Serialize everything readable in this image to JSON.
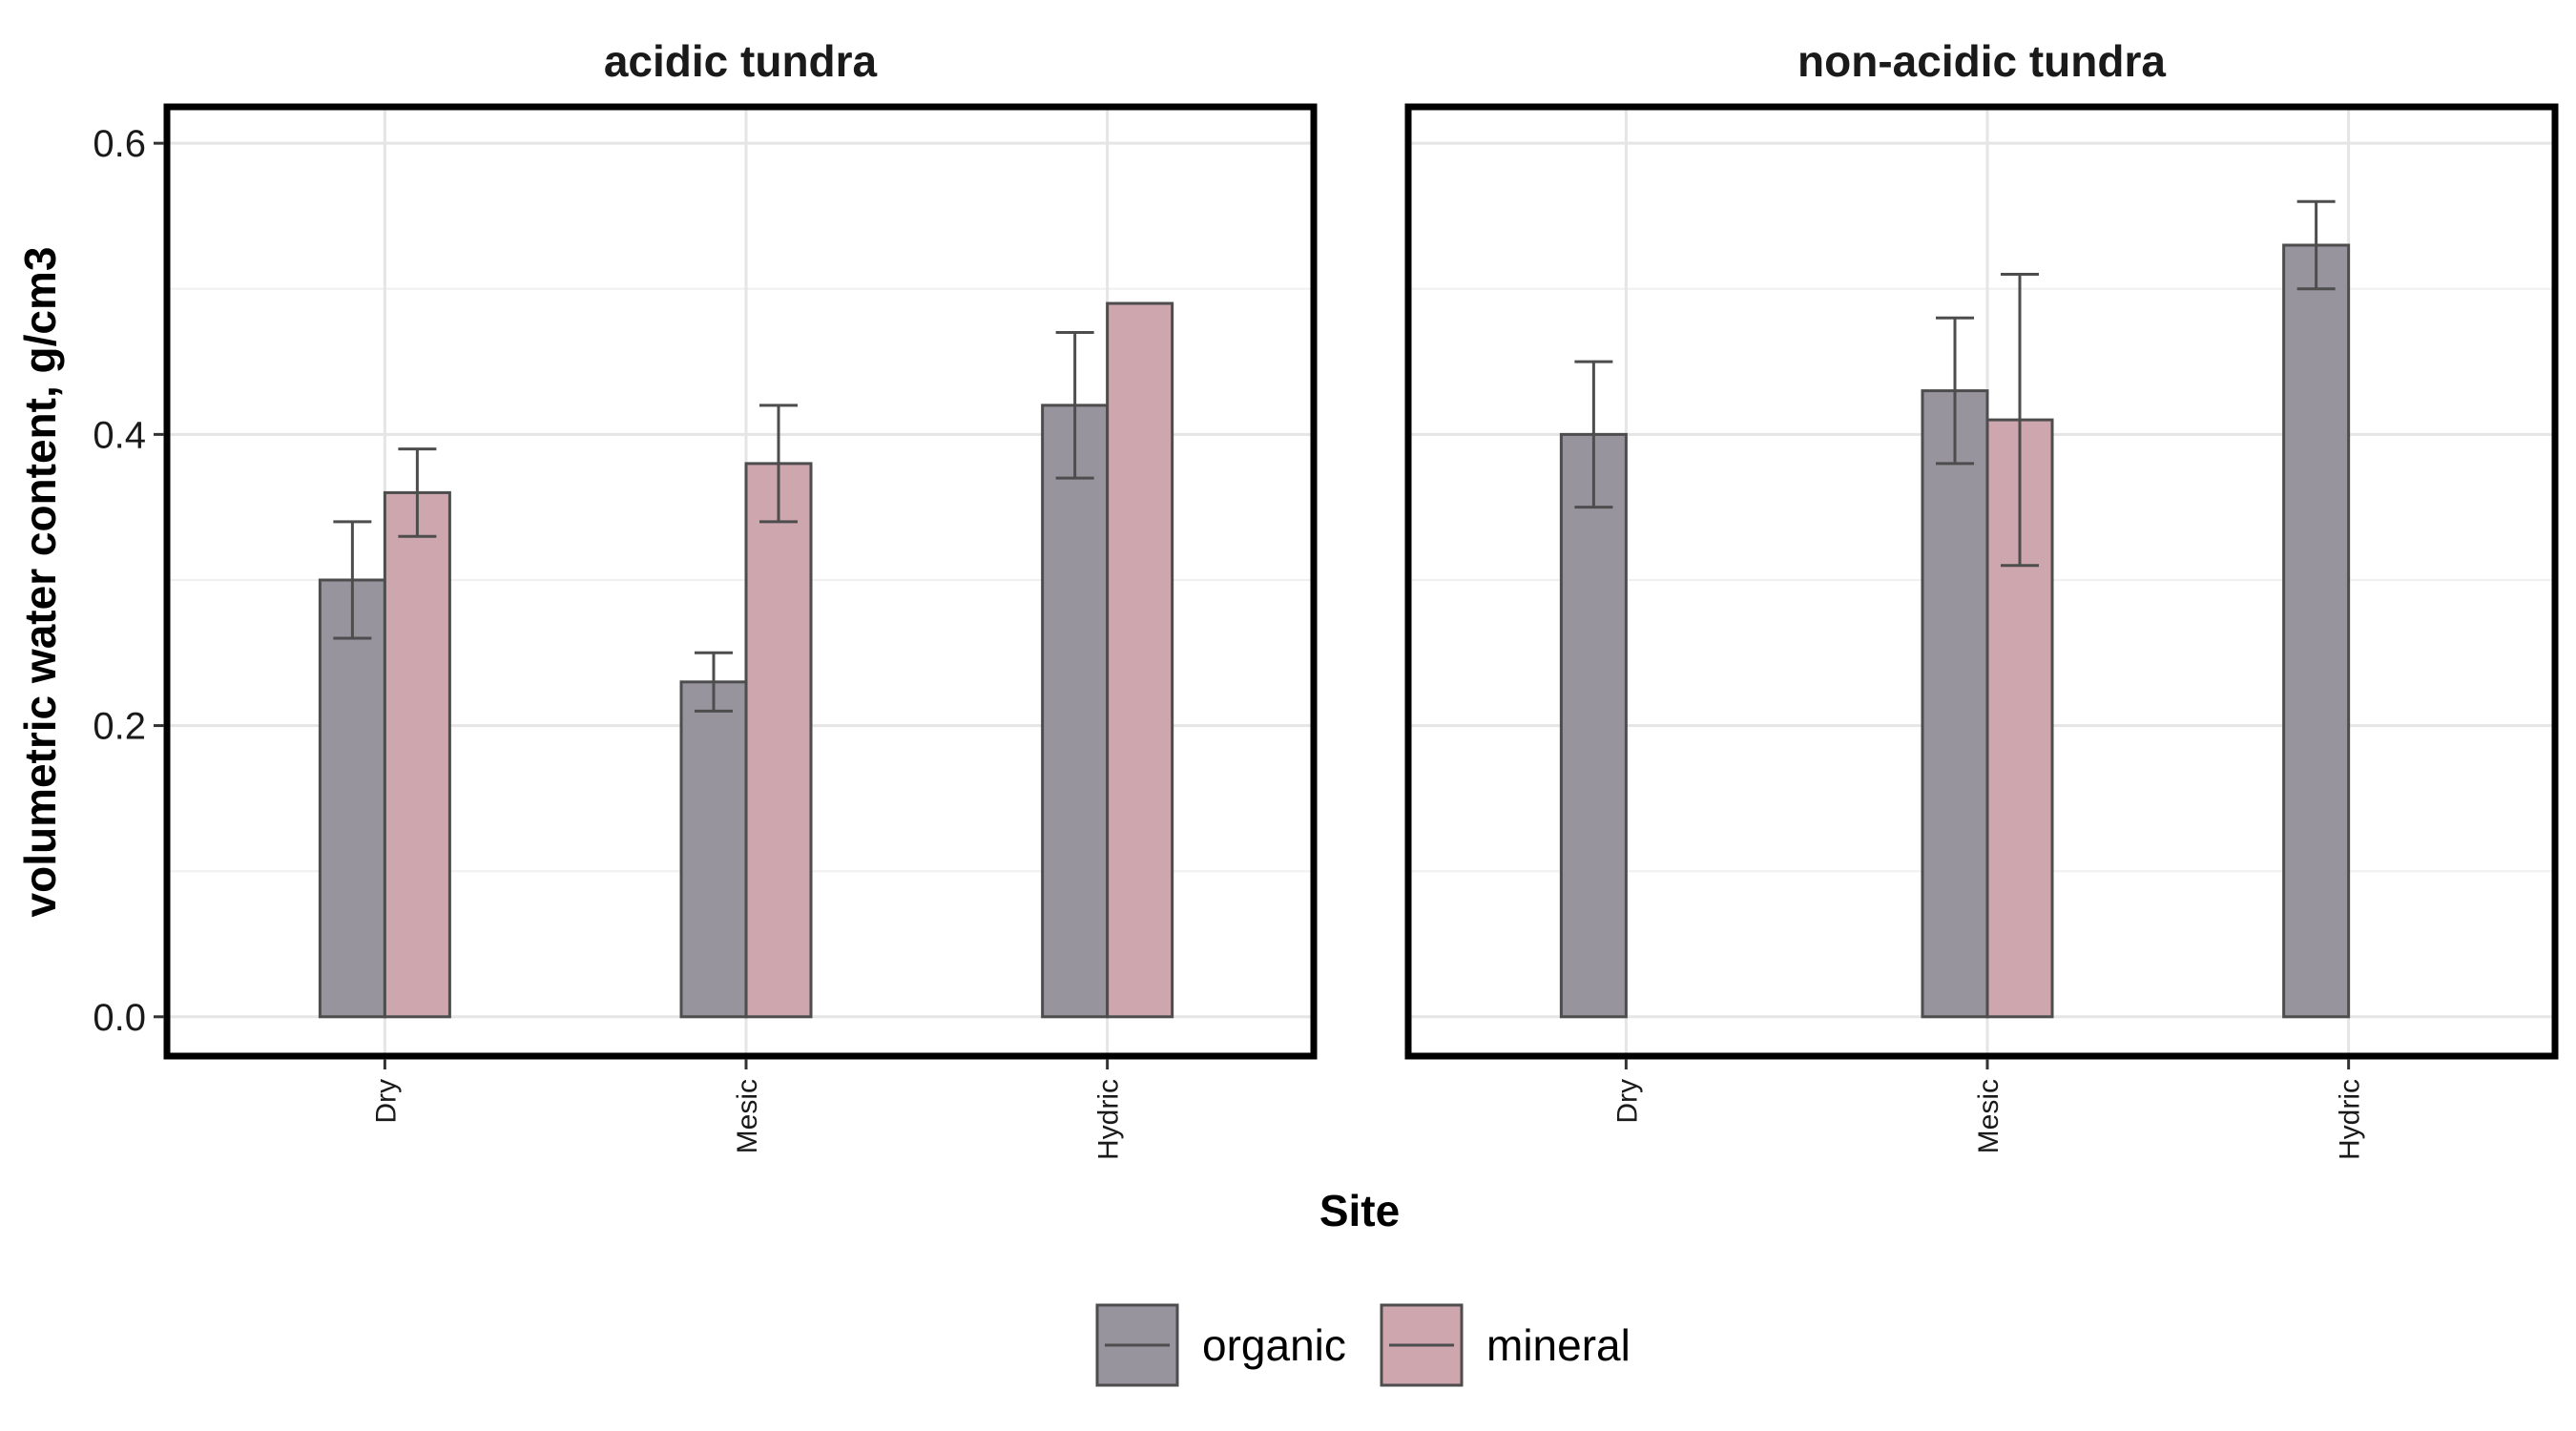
{
  "chart_data": {
    "type": "bar",
    "ylabel": "volumetric water content, g/cm3",
    "xlabel": "Site",
    "ylim": [
      -0.027,
      0.625
    ],
    "yticks": [
      0.0,
      0.2,
      0.4,
      0.6
    ],
    "ytick_labels": [
      "0.0",
      "0.2",
      "0.4",
      "0.6"
    ],
    "categories": [
      "Dry",
      "Mesic",
      "Hydric"
    ],
    "grid": true,
    "legend_position": "bottom",
    "series_colors": {
      "organic": "#97949e",
      "mineral": "#cea7ae"
    },
    "legend": [
      {
        "key": "organic",
        "label": "organic"
      },
      {
        "key": "mineral",
        "label": "mineral"
      }
    ],
    "panels": [
      {
        "title": "acidic tundra",
        "bars": [
          {
            "category": "Dry",
            "series": "organic",
            "value": 0.3,
            "err_low": 0.26,
            "err_high": 0.34
          },
          {
            "category": "Dry",
            "series": "mineral",
            "value": 0.36,
            "err_low": 0.33,
            "err_high": 0.39
          },
          {
            "category": "Mesic",
            "series": "organic",
            "value": 0.23,
            "err_low": 0.21,
            "err_high": 0.25
          },
          {
            "category": "Mesic",
            "series": "mineral",
            "value": 0.38,
            "err_low": 0.34,
            "err_high": 0.42
          },
          {
            "category": "Hydric",
            "series": "organic",
            "value": 0.42,
            "err_low": 0.37,
            "err_high": 0.47
          },
          {
            "category": "Hydric",
            "series": "mineral",
            "value": 0.49,
            "err_low": null,
            "err_high": null
          }
        ]
      },
      {
        "title": "non-acidic tundra",
        "bars": [
          {
            "category": "Dry",
            "series": "organic",
            "value": 0.4,
            "err_low": 0.35,
            "err_high": 0.45
          },
          {
            "category": "Mesic",
            "series": "organic",
            "value": 0.43,
            "err_low": 0.38,
            "err_high": 0.48
          },
          {
            "category": "Mesic",
            "series": "mineral",
            "value": 0.41,
            "err_low": 0.31,
            "err_high": 0.51
          },
          {
            "category": "Hydric",
            "series": "organic",
            "value": 0.53,
            "err_low": 0.5,
            "err_high": 0.56
          }
        ]
      }
    ]
  }
}
